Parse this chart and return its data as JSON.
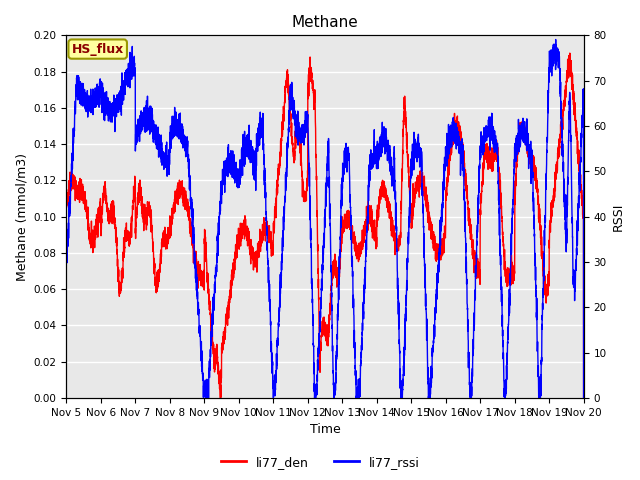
{
  "title": "Methane",
  "ylabel_left": "Methane (mmol/m3)",
  "ylabel_right": "RSSI",
  "xlabel": "Time",
  "ylim_left": [
    0.0,
    0.2
  ],
  "ylim_right": [
    0,
    80
  ],
  "legend_labels": [
    "li77_den",
    "li77_rssi"
  ],
  "legend_colors": [
    "red",
    "blue"
  ],
  "annotation_text": "HS_flux",
  "annotation_color": "#8b0000",
  "annotation_bg": "#ffffa0",
  "annotation_border": "#999900",
  "xtick_labels": [
    "Nov 5",
    "Nov 6",
    "Nov 7",
    "Nov 8",
    "Nov 9",
    "Nov 10",
    "Nov 11",
    "Nov 12",
    "Nov 13",
    "Nov 14",
    "Nov 15",
    "Nov 16",
    "Nov 17",
    "Nov 18",
    "Nov 19",
    "Nov 20"
  ],
  "bg_color": "#e8e8e8",
  "line_width": 1.0,
  "title_fontsize": 11,
  "axis_fontsize": 9,
  "tick_fontsize": 7.5
}
